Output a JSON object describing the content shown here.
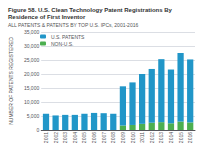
{
  "chart_data": {
    "type": "bar",
    "title": "Figure 58. U.S. Clean Technology Patent Registrations By Residence of First Inventor",
    "subtitle": "ALL PATENTS & PATENTS BY TOP U.S. IPCs, 2001-2016",
    "ylabel": "NUMBER OF PATENTS REGISTERED",
    "categories": [
      "2001",
      "2002",
      "2003",
      "2004",
      "2005",
      "2006",
      "2007",
      "2008",
      "2009",
      "2010",
      "2011",
      "2012",
      "2013",
      "2014",
      "2015",
      "2016"
    ],
    "series": [
      {
        "name": "NON-U.S.",
        "color": "#4caf50",
        "values": [
          0,
          0,
          0,
          0,
          0,
          0,
          0,
          0,
          1600,
          1800,
          2200,
          2600,
          2800,
          2400,
          3000,
          2700
        ]
      },
      {
        "name": "U.S. PATENTS",
        "color": "#2196c8",
        "values": [
          5800,
          5200,
          5400,
          5400,
          5800,
          6100,
          6000,
          5800,
          14000,
          15200,
          17800,
          19200,
          22500,
          19200,
          24500,
          22500
        ]
      }
    ],
    "stacked": true,
    "ylim": [
      0,
      35000
    ],
    "yticks": [
      0,
      {
        "value": 5000,
        "label": "5,000"
      },
      {
        "value": 10000,
        "label": "10,000"
      },
      {
        "value": 15000,
        "label": "15,000"
      },
      {
        "value": 20000,
        "label": "20,000"
      },
      {
        "value": 25000,
        "label": "25,000"
      },
      {
        "value": 30000,
        "label": "30,000"
      },
      {
        "value": 35000,
        "label": "35,000"
      }
    ],
    "grid": true,
    "legend": "upper left"
  }
}
